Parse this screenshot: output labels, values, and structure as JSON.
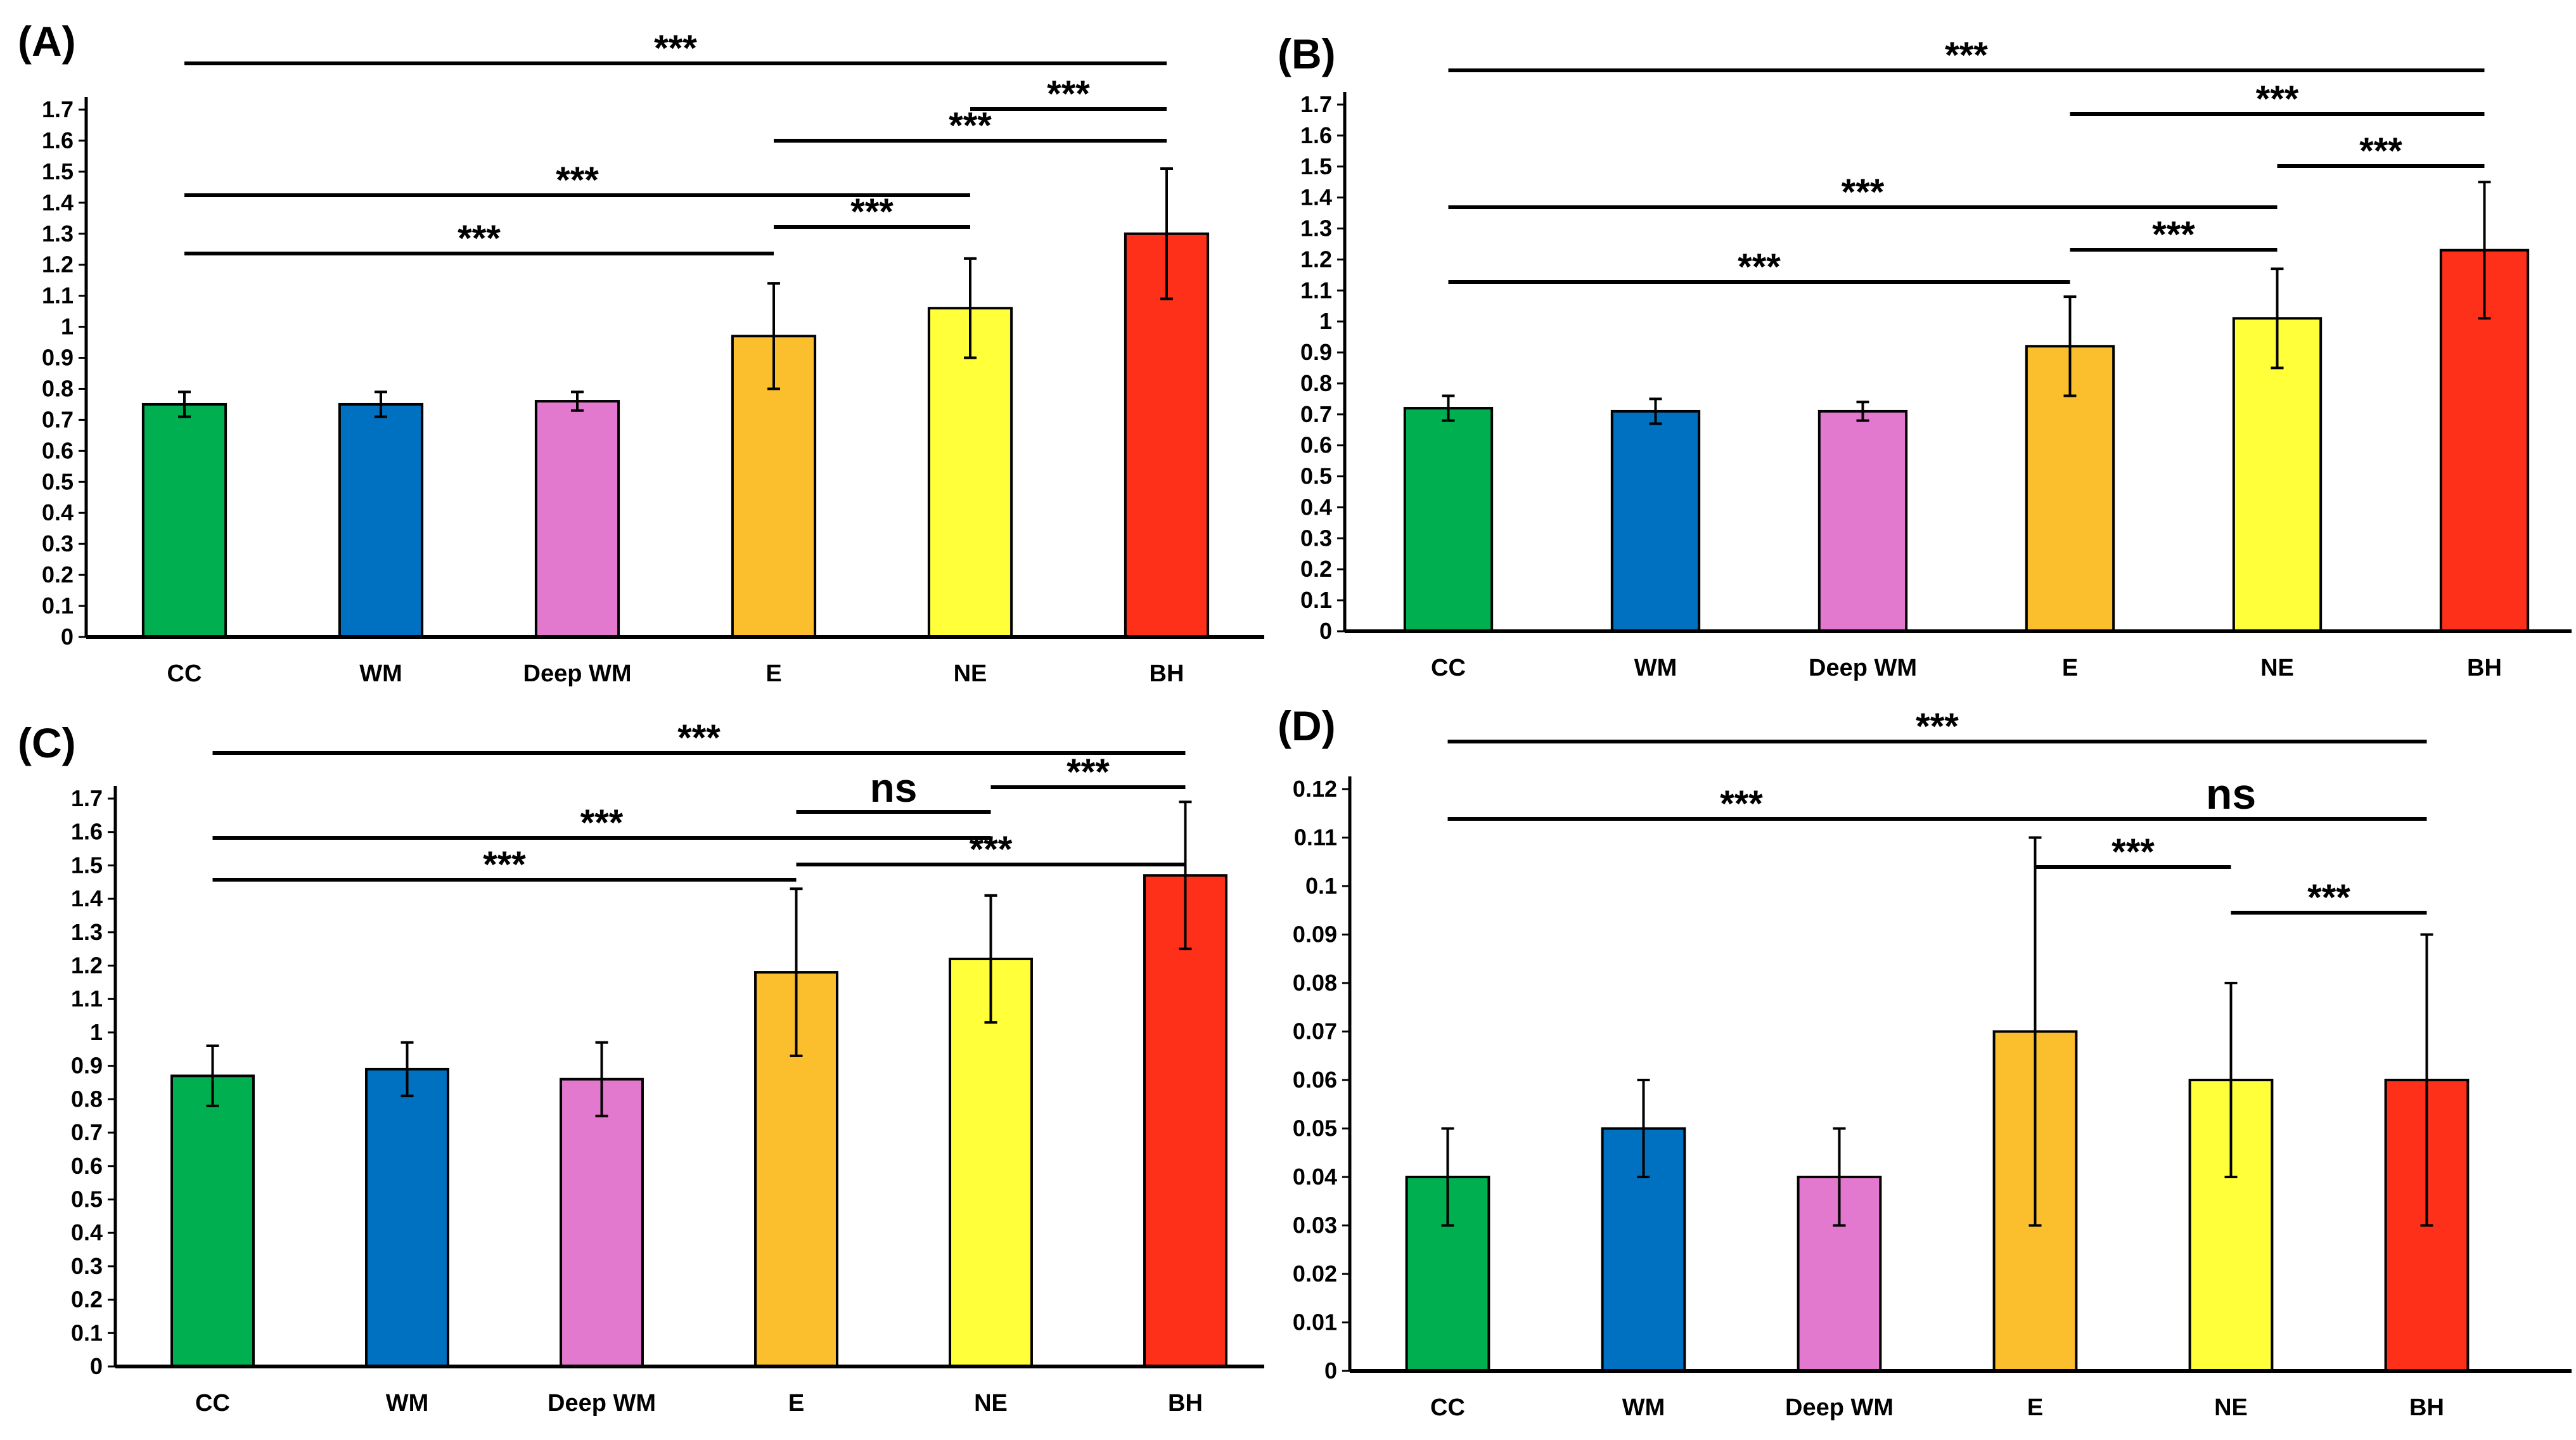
{
  "chart_data": [
    {
      "type": "bar",
      "panel": "(A)",
      "categories": [
        "CC",
        "WM",
        "Deep WM",
        "E",
        "NE",
        "BH"
      ],
      "values": [
        0.75,
        0.75,
        0.76,
        0.97,
        1.06,
        1.3
      ],
      "errors": [
        0.04,
        0.04,
        0.03,
        0.17,
        0.16,
        0.21
      ],
      "colors": [
        "#00b050",
        "#0070c0",
        "#e279ce",
        "#fbbf2d",
        "#ffff3a",
        "#ff3019"
      ],
      "ylim": [
        0,
        1.7
      ],
      "yticks": [
        "0",
        "0.1",
        "0.2",
        "0.3",
        "0.4",
        "0.5",
        "0.6",
        "0.7",
        "0.8",
        "0.9",
        "1",
        "1.1",
        "1.2",
        "1.3",
        "1.4",
        "1.5",
        "1.6",
        "1.7"
      ],
      "comparisons": [
        {
          "from": "CC",
          "to": "E",
          "label": "***"
        },
        {
          "from": "CC",
          "to": "NE",
          "label": "***"
        },
        {
          "from": "E",
          "to": "NE",
          "label": "***"
        },
        {
          "from": "E",
          "to": "BH",
          "label": "***"
        },
        {
          "from": "NE",
          "to": "BH",
          "label": "***"
        },
        {
          "from": "CC",
          "to": "BH",
          "label": "***"
        }
      ]
    },
    {
      "type": "bar",
      "panel": "(B)",
      "categories": [
        "CC",
        "WM",
        "Deep WM",
        "E",
        "NE",
        "BH"
      ],
      "values": [
        0.72,
        0.71,
        0.71,
        0.92,
        1.01,
        1.23
      ],
      "errors": [
        0.04,
        0.04,
        0.03,
        0.16,
        0.16,
        0.22
      ],
      "colors": [
        "#00b050",
        "#0070c0",
        "#e279ce",
        "#fbbf2d",
        "#ffff3a",
        "#ff3019"
      ],
      "ylim": [
        0,
        1.7
      ],
      "yticks": [
        "0",
        "0.1",
        "0.2",
        "0.3",
        "0.4",
        "0.5",
        "0.6",
        "0.7",
        "0.8",
        "0.9",
        "1",
        "1.1",
        "1.2",
        "1.3",
        "1.4",
        "1.5",
        "1.6",
        "1.7"
      ],
      "comparisons": [
        {
          "from": "CC",
          "to": "E",
          "label": "***"
        },
        {
          "from": "E",
          "to": "NE",
          "label": "***"
        },
        {
          "from": "CC",
          "to": "NE",
          "label": "***"
        },
        {
          "from": "NE",
          "to": "BH",
          "label": "***"
        },
        {
          "from": "E",
          "to": "BH",
          "label": "***"
        },
        {
          "from": "CC",
          "to": "BH",
          "label": "***"
        }
      ]
    },
    {
      "type": "bar",
      "panel": "(C)",
      "categories": [
        "CC",
        "WM",
        "Deep WM",
        "E",
        "NE",
        "BH"
      ],
      "values": [
        0.87,
        0.89,
        0.86,
        1.18,
        1.22,
        1.47
      ],
      "errors": [
        0.09,
        0.08,
        0.11,
        0.25,
        0.19,
        0.22
      ],
      "colors": [
        "#00b050",
        "#0070c0",
        "#e279ce",
        "#fbbf2d",
        "#ffff3a",
        "#ff3019"
      ],
      "ylim": [
        0,
        1.7
      ],
      "yticks": [
        "0",
        "0.1",
        "0.2",
        "0.3",
        "0.4",
        "0.5",
        "0.6",
        "0.7",
        "0.8",
        "0.9",
        "1",
        "1.1",
        "1.2",
        "1.3",
        "1.4",
        "1.5",
        "1.6",
        "1.7"
      ],
      "comparisons": [
        {
          "from": "CC",
          "to": "E",
          "label": "***"
        },
        {
          "from": "E",
          "to": "BH",
          "label": "***"
        },
        {
          "from": "CC",
          "to": "NE",
          "label": "***"
        },
        {
          "from": "E",
          "to": "NE",
          "label": "ns"
        },
        {
          "from": "NE",
          "to": "BH",
          "label": "***"
        },
        {
          "from": "CC",
          "to": "BH",
          "label": "***"
        }
      ]
    },
    {
      "type": "bar",
      "panel": "(D)",
      "categories": [
        "CC",
        "WM",
        "Deep WM",
        "E",
        "NE",
        "BH"
      ],
      "values": [
        0.04,
        0.05,
        0.04,
        0.07,
        0.06,
        0.06
      ],
      "errors": [
        0.01,
        0.01,
        0.01,
        0.04,
        0.02,
        0.03
      ],
      "colors": [
        "#00b050",
        "#0070c0",
        "#e279ce",
        "#fbbf2d",
        "#ffff3a",
        "#ff3019"
      ],
      "ylim": [
        0,
        0.12
      ],
      "yticks": [
        "0",
        "0.01",
        "0.02",
        "0.03",
        "0.04",
        "0.05",
        "0.06",
        "0.07",
        "0.08",
        "0.09",
        "0.1",
        "0.11",
        "0.12"
      ],
      "comparisons": [
        {
          "from": "NE",
          "to": "BH",
          "label": "***"
        },
        {
          "from": "E",
          "to": "NE",
          "label": "***"
        },
        {
          "from": "CC",
          "to": "E",
          "label": "***"
        },
        {
          "from": "E",
          "to": "BH",
          "label": "ns"
        },
        {
          "from": "CC",
          "to": "BH",
          "label": "***"
        }
      ]
    }
  ]
}
